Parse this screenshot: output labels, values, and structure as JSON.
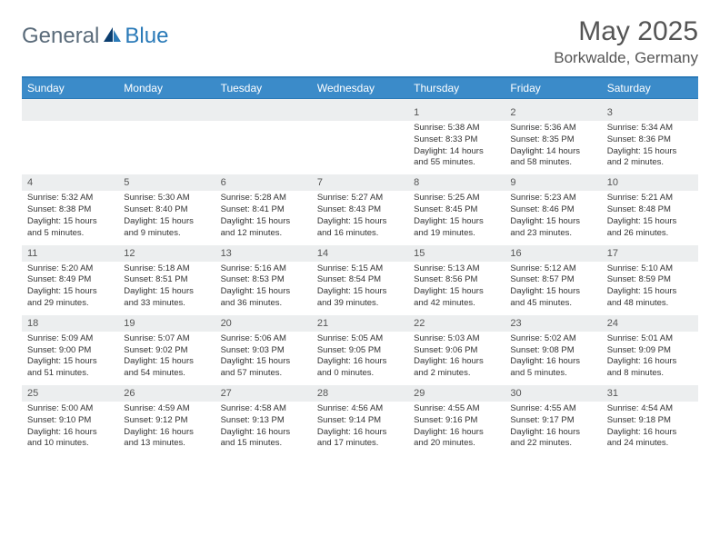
{
  "logo": {
    "text1": "General",
    "text2": "Blue"
  },
  "title": "May 2025",
  "location": "Borkwalde, Germany",
  "colors": {
    "header_bg": "#3b8bc9",
    "border": "#2a7ab8",
    "row_stripe": "#eceeef",
    "text": "#333333",
    "muted": "#555555",
    "logo_gray": "#5a6b7a",
    "logo_blue": "#2a7ab8"
  },
  "day_names": [
    "Sunday",
    "Monday",
    "Tuesday",
    "Wednesday",
    "Thursday",
    "Friday",
    "Saturday"
  ],
  "weeks": [
    {
      "dates": [
        "",
        "",
        "",
        "",
        "1",
        "2",
        "3"
      ],
      "cells": [
        {
          "sunrise": "",
          "sunset": "",
          "daylight1": "",
          "daylight2": ""
        },
        {
          "sunrise": "",
          "sunset": "",
          "daylight1": "",
          "daylight2": ""
        },
        {
          "sunrise": "",
          "sunset": "",
          "daylight1": "",
          "daylight2": ""
        },
        {
          "sunrise": "",
          "sunset": "",
          "daylight1": "",
          "daylight2": ""
        },
        {
          "sunrise": "Sunrise: 5:38 AM",
          "sunset": "Sunset: 8:33 PM",
          "daylight1": "Daylight: 14 hours",
          "daylight2": "and 55 minutes."
        },
        {
          "sunrise": "Sunrise: 5:36 AM",
          "sunset": "Sunset: 8:35 PM",
          "daylight1": "Daylight: 14 hours",
          "daylight2": "and 58 minutes."
        },
        {
          "sunrise": "Sunrise: 5:34 AM",
          "sunset": "Sunset: 8:36 PM",
          "daylight1": "Daylight: 15 hours",
          "daylight2": "and 2 minutes."
        }
      ]
    },
    {
      "dates": [
        "4",
        "5",
        "6",
        "7",
        "8",
        "9",
        "10"
      ],
      "cells": [
        {
          "sunrise": "Sunrise: 5:32 AM",
          "sunset": "Sunset: 8:38 PM",
          "daylight1": "Daylight: 15 hours",
          "daylight2": "and 5 minutes."
        },
        {
          "sunrise": "Sunrise: 5:30 AM",
          "sunset": "Sunset: 8:40 PM",
          "daylight1": "Daylight: 15 hours",
          "daylight2": "and 9 minutes."
        },
        {
          "sunrise": "Sunrise: 5:28 AM",
          "sunset": "Sunset: 8:41 PM",
          "daylight1": "Daylight: 15 hours",
          "daylight2": "and 12 minutes."
        },
        {
          "sunrise": "Sunrise: 5:27 AM",
          "sunset": "Sunset: 8:43 PM",
          "daylight1": "Daylight: 15 hours",
          "daylight2": "and 16 minutes."
        },
        {
          "sunrise": "Sunrise: 5:25 AM",
          "sunset": "Sunset: 8:45 PM",
          "daylight1": "Daylight: 15 hours",
          "daylight2": "and 19 minutes."
        },
        {
          "sunrise": "Sunrise: 5:23 AM",
          "sunset": "Sunset: 8:46 PM",
          "daylight1": "Daylight: 15 hours",
          "daylight2": "and 23 minutes."
        },
        {
          "sunrise": "Sunrise: 5:21 AM",
          "sunset": "Sunset: 8:48 PM",
          "daylight1": "Daylight: 15 hours",
          "daylight2": "and 26 minutes."
        }
      ]
    },
    {
      "dates": [
        "11",
        "12",
        "13",
        "14",
        "15",
        "16",
        "17"
      ],
      "cells": [
        {
          "sunrise": "Sunrise: 5:20 AM",
          "sunset": "Sunset: 8:49 PM",
          "daylight1": "Daylight: 15 hours",
          "daylight2": "and 29 minutes."
        },
        {
          "sunrise": "Sunrise: 5:18 AM",
          "sunset": "Sunset: 8:51 PM",
          "daylight1": "Daylight: 15 hours",
          "daylight2": "and 33 minutes."
        },
        {
          "sunrise": "Sunrise: 5:16 AM",
          "sunset": "Sunset: 8:53 PM",
          "daylight1": "Daylight: 15 hours",
          "daylight2": "and 36 minutes."
        },
        {
          "sunrise": "Sunrise: 5:15 AM",
          "sunset": "Sunset: 8:54 PM",
          "daylight1": "Daylight: 15 hours",
          "daylight2": "and 39 minutes."
        },
        {
          "sunrise": "Sunrise: 5:13 AM",
          "sunset": "Sunset: 8:56 PM",
          "daylight1": "Daylight: 15 hours",
          "daylight2": "and 42 minutes."
        },
        {
          "sunrise": "Sunrise: 5:12 AM",
          "sunset": "Sunset: 8:57 PM",
          "daylight1": "Daylight: 15 hours",
          "daylight2": "and 45 minutes."
        },
        {
          "sunrise": "Sunrise: 5:10 AM",
          "sunset": "Sunset: 8:59 PM",
          "daylight1": "Daylight: 15 hours",
          "daylight2": "and 48 minutes."
        }
      ]
    },
    {
      "dates": [
        "18",
        "19",
        "20",
        "21",
        "22",
        "23",
        "24"
      ],
      "cells": [
        {
          "sunrise": "Sunrise: 5:09 AM",
          "sunset": "Sunset: 9:00 PM",
          "daylight1": "Daylight: 15 hours",
          "daylight2": "and 51 minutes."
        },
        {
          "sunrise": "Sunrise: 5:07 AM",
          "sunset": "Sunset: 9:02 PM",
          "daylight1": "Daylight: 15 hours",
          "daylight2": "and 54 minutes."
        },
        {
          "sunrise": "Sunrise: 5:06 AM",
          "sunset": "Sunset: 9:03 PM",
          "daylight1": "Daylight: 15 hours",
          "daylight2": "and 57 minutes."
        },
        {
          "sunrise": "Sunrise: 5:05 AM",
          "sunset": "Sunset: 9:05 PM",
          "daylight1": "Daylight: 16 hours",
          "daylight2": "and 0 minutes."
        },
        {
          "sunrise": "Sunrise: 5:03 AM",
          "sunset": "Sunset: 9:06 PM",
          "daylight1": "Daylight: 16 hours",
          "daylight2": "and 2 minutes."
        },
        {
          "sunrise": "Sunrise: 5:02 AM",
          "sunset": "Sunset: 9:08 PM",
          "daylight1": "Daylight: 16 hours",
          "daylight2": "and 5 minutes."
        },
        {
          "sunrise": "Sunrise: 5:01 AM",
          "sunset": "Sunset: 9:09 PM",
          "daylight1": "Daylight: 16 hours",
          "daylight2": "and 8 minutes."
        }
      ]
    },
    {
      "dates": [
        "25",
        "26",
        "27",
        "28",
        "29",
        "30",
        "31"
      ],
      "cells": [
        {
          "sunrise": "Sunrise: 5:00 AM",
          "sunset": "Sunset: 9:10 PM",
          "daylight1": "Daylight: 16 hours",
          "daylight2": "and 10 minutes."
        },
        {
          "sunrise": "Sunrise: 4:59 AM",
          "sunset": "Sunset: 9:12 PM",
          "daylight1": "Daylight: 16 hours",
          "daylight2": "and 13 minutes."
        },
        {
          "sunrise": "Sunrise: 4:58 AM",
          "sunset": "Sunset: 9:13 PM",
          "daylight1": "Daylight: 16 hours",
          "daylight2": "and 15 minutes."
        },
        {
          "sunrise": "Sunrise: 4:56 AM",
          "sunset": "Sunset: 9:14 PM",
          "daylight1": "Daylight: 16 hours",
          "daylight2": "and 17 minutes."
        },
        {
          "sunrise": "Sunrise: 4:55 AM",
          "sunset": "Sunset: 9:16 PM",
          "daylight1": "Daylight: 16 hours",
          "daylight2": "and 20 minutes."
        },
        {
          "sunrise": "Sunrise: 4:55 AM",
          "sunset": "Sunset: 9:17 PM",
          "daylight1": "Daylight: 16 hours",
          "daylight2": "and 22 minutes."
        },
        {
          "sunrise": "Sunrise: 4:54 AM",
          "sunset": "Sunset: 9:18 PM",
          "daylight1": "Daylight: 16 hours",
          "daylight2": "and 24 minutes."
        }
      ]
    }
  ]
}
